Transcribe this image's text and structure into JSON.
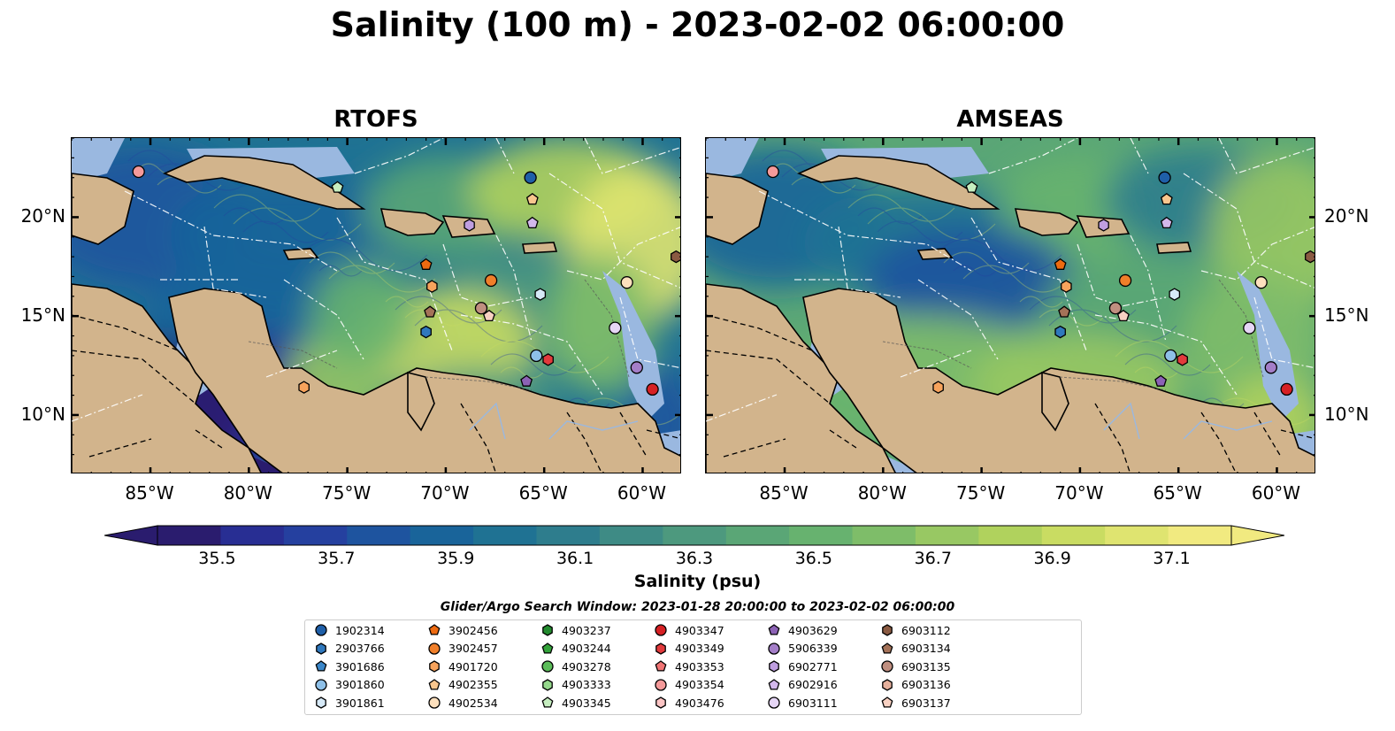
{
  "title": "Salinity (100 m) - 2023-02-02 06:00:00",
  "panels": [
    {
      "id": "rtofs",
      "title": "RTOFS"
    },
    {
      "id": "amseas",
      "title": "AMSEAS"
    }
  ],
  "map_extent": {
    "lon": [
      -89,
      -58
    ],
    "lat": [
      7,
      24
    ]
  },
  "axes": {
    "lon_ticks": [
      "85°W",
      "80°W",
      "75°W",
      "70°W",
      "65°W",
      "60°W"
    ],
    "lon_values": [
      -85,
      -80,
      -75,
      -70,
      -65,
      -60
    ],
    "lat_ticks": [
      "20°N",
      "15°N",
      "10°N"
    ],
    "lat_values": [
      20,
      15,
      10
    ]
  },
  "colorbar": {
    "label": "Salinity (psu)",
    "ticks": [
      "35.5",
      "35.7",
      "35.9",
      "36.1",
      "36.3",
      "36.5",
      "36.7",
      "36.9",
      "37.1"
    ],
    "tick_values": [
      35.5,
      35.7,
      35.9,
      36.1,
      36.3,
      36.5,
      36.7,
      36.9,
      37.1
    ],
    "levels": [
      35.4,
      35.5,
      35.6,
      35.7,
      35.8,
      35.9,
      36.0,
      36.1,
      36.2,
      36.3,
      36.4,
      36.5,
      36.6,
      36.7,
      36.8,
      36.9,
      37.0,
      37.1,
      37.2
    ],
    "colors": [
      "#2a1c6e",
      "#282e93",
      "#25409f",
      "#1e549f",
      "#19649a",
      "#1f7293",
      "#2e7d8d",
      "#3e8b85",
      "#4d997e",
      "#5aa676",
      "#67b26f",
      "#7ebd69",
      "#98c863",
      "#b0d25d",
      "#c9dc62",
      "#dfe470",
      "#f1ea80"
    ],
    "extend": "both"
  },
  "colors": {
    "land": "#d2b48c",
    "shallow_water": "#9ab8e0",
    "eez_lines": "#ffffff"
  },
  "search_window": "Glider/Argo Search Window: 2023-01-28 20:00:00 to 2023-02-02 06:00:00",
  "legend": [
    {
      "id": "1902314",
      "marker": "circle",
      "color": "#1f5fa8"
    },
    {
      "id": "2903766",
      "marker": "hexagon",
      "color": "#2f78bd"
    },
    {
      "id": "3901686",
      "marker": "pentagon",
      "color": "#3a86c8"
    },
    {
      "id": "3901860",
      "marker": "circle",
      "color": "#8ec0e8"
    },
    {
      "id": "3901861",
      "marker": "hexagon",
      "color": "#d6e9f7"
    },
    {
      "id": "3902456",
      "marker": "pentagon",
      "color": "#ee6a10"
    },
    {
      "id": "3902457",
      "marker": "circle",
      "color": "#f07f2a"
    },
    {
      "id": "4901720",
      "marker": "hexagon",
      "color": "#f7a35c"
    },
    {
      "id": "4902355",
      "marker": "pentagon",
      "color": "#f9c68e"
    },
    {
      "id": "4902534",
      "marker": "circle",
      "color": "#fde0bd"
    },
    {
      "id": "4903237",
      "marker": "hexagon",
      "color": "#238b2f"
    },
    {
      "id": "4903244",
      "marker": "pentagon",
      "color": "#33a33a"
    },
    {
      "id": "4903278",
      "marker": "circle",
      "color": "#5cbd5a"
    },
    {
      "id": "4903333",
      "marker": "hexagon",
      "color": "#95d88c"
    },
    {
      "id": "4903345",
      "marker": "pentagon",
      "color": "#c6eec0"
    },
    {
      "id": "4903347",
      "marker": "circle",
      "color": "#d62024"
    },
    {
      "id": "4903349",
      "marker": "hexagon",
      "color": "#e23a3c"
    },
    {
      "id": "4903353",
      "marker": "pentagon",
      "color": "#f07474"
    },
    {
      "id": "4903354",
      "marker": "circle",
      "color": "#f59a9a"
    },
    {
      "id": "4903476",
      "marker": "hexagon",
      "color": "#fbc4c4"
    },
    {
      "id": "4903629",
      "marker": "pentagon",
      "color": "#8c62b5"
    },
    {
      "id": "5906339",
      "marker": "circle",
      "color": "#a47ec8"
    },
    {
      "id": "6902771",
      "marker": "hexagon",
      "color": "#bf9ee0"
    },
    {
      "id": "6902916",
      "marker": "pentagon",
      "color": "#d3b8ec"
    },
    {
      "id": "6903111",
      "marker": "circle",
      "color": "#e6d6f6"
    },
    {
      "id": "6903112",
      "marker": "hexagon",
      "color": "#8a5a42"
    },
    {
      "id": "6903134",
      "marker": "pentagon",
      "color": "#a47258"
    },
    {
      "id": "6903135",
      "marker": "circle",
      "color": "#c08f80"
    },
    {
      "id": "6903136",
      "marker": "hexagon",
      "color": "#e6b09c"
    },
    {
      "id": "6903137",
      "marker": "pentagon",
      "color": "#f8d1c2"
    }
  ],
  "platforms": [
    {
      "id": "4903354",
      "lon": -85.6,
      "lat": 22.3
    },
    {
      "id": "4903345",
      "lon": -75.5,
      "lat": 21.5
    },
    {
      "id": "1902314",
      "lon": -65.7,
      "lat": 22.0
    },
    {
      "id": "4902355",
      "lon": -65.6,
      "lat": 20.9
    },
    {
      "id": "6902771",
      "lon": -68.8,
      "lat": 19.6
    },
    {
      "id": "6902916",
      "lon": -65.6,
      "lat": 19.7
    },
    {
      "id": "6903112",
      "lon": -58.3,
      "lat": 18.0
    },
    {
      "id": "3902456",
      "lon": -71.0,
      "lat": 17.6
    },
    {
      "id": "3902457",
      "lon": -67.7,
      "lat": 16.8
    },
    {
      "id": "4902534",
      "lon": -60.8,
      "lat": 16.7
    },
    {
      "id": "4901720",
      "lon": -70.7,
      "lat": 16.5
    },
    {
      "id": "3901861",
      "lon": -65.2,
      "lat": 16.1
    },
    {
      "id": "6903134",
      "lon": -70.8,
      "lat": 15.2
    },
    {
      "id": "6903135",
      "lon": -68.2,
      "lat": 15.4
    },
    {
      "id": "6903137",
      "lon": -67.8,
      "lat": 15.0
    },
    {
      "id": "2903766",
      "lon": -71.0,
      "lat": 14.2
    },
    {
      "id": "6903111",
      "lon": -61.4,
      "lat": 14.4
    },
    {
      "id": "3901860",
      "lon": -65.4,
      "lat": 13.0
    },
    {
      "id": "4903349",
      "lon": -64.8,
      "lat": 12.8
    },
    {
      "id": "5906339",
      "lon": -60.3,
      "lat": 12.4
    },
    {
      "id": "4903629",
      "lon": -65.9,
      "lat": 11.7
    },
    {
      "id": "4901720",
      "lon": -77.2,
      "lat": 11.4
    },
    {
      "id": "4903347",
      "lon": -59.5,
      "lat": 11.3
    }
  ]
}
